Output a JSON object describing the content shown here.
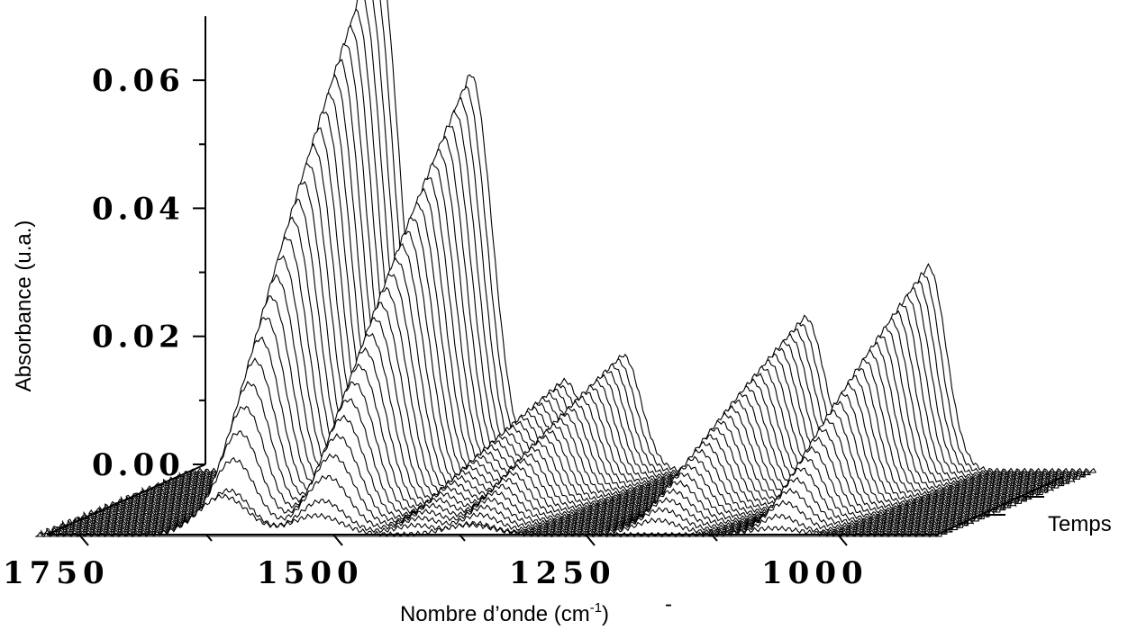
{
  "chart_data": {
    "type": "line",
    "subtype": "waterfall-3d",
    "title": "",
    "xlabel": "Nombre d’onde (cm",
    "xlabel_sup": "-1",
    "xlabel_close": ")",
    "ylabel": "Absorbance (u.a.)",
    "zlabel": "Temps",
    "x_ticks": [
      "1750",
      "1500",
      "1250",
      "1000"
    ],
    "y_ticks": [
      "0.00",
      "0.02",
      "0.04",
      "0.06"
    ],
    "xlim": [
      1800,
      880
    ],
    "ylim": [
      0,
      0.07
    ],
    "x_reversed": true,
    "grid": false,
    "n_spectra": 30,
    "bands": [
      {
        "center_cm1": 1610,
        "final_absorbance": 0.082,
        "width_cm1": 22
      },
      {
        "center_cm1": 1515,
        "final_absorbance": 0.062,
        "width_cm1": 22
      },
      {
        "center_cm1": 1420,
        "final_absorbance": 0.014,
        "width_cm1": 18
      },
      {
        "center_cm1": 1360,
        "final_absorbance": 0.018,
        "width_cm1": 18
      },
      {
        "center_cm1": 1175,
        "final_absorbance": 0.024,
        "width_cm1": 20
      },
      {
        "center_cm1": 1050,
        "final_absorbance": 0.032,
        "width_cm1": 18
      }
    ],
    "first_spectrum_bands": [
      {
        "center_cm1": 1610,
        "absorbance": 0.006
      },
      {
        "center_cm1": 1515,
        "absorbance": 0.003
      },
      {
        "center_cm1": 1360,
        "absorbance": 0.0015
      },
      {
        "center_cm1": 1050,
        "absorbance": 0.001
      }
    ],
    "series_line_color": "#000000"
  },
  "stray_mark": "-"
}
